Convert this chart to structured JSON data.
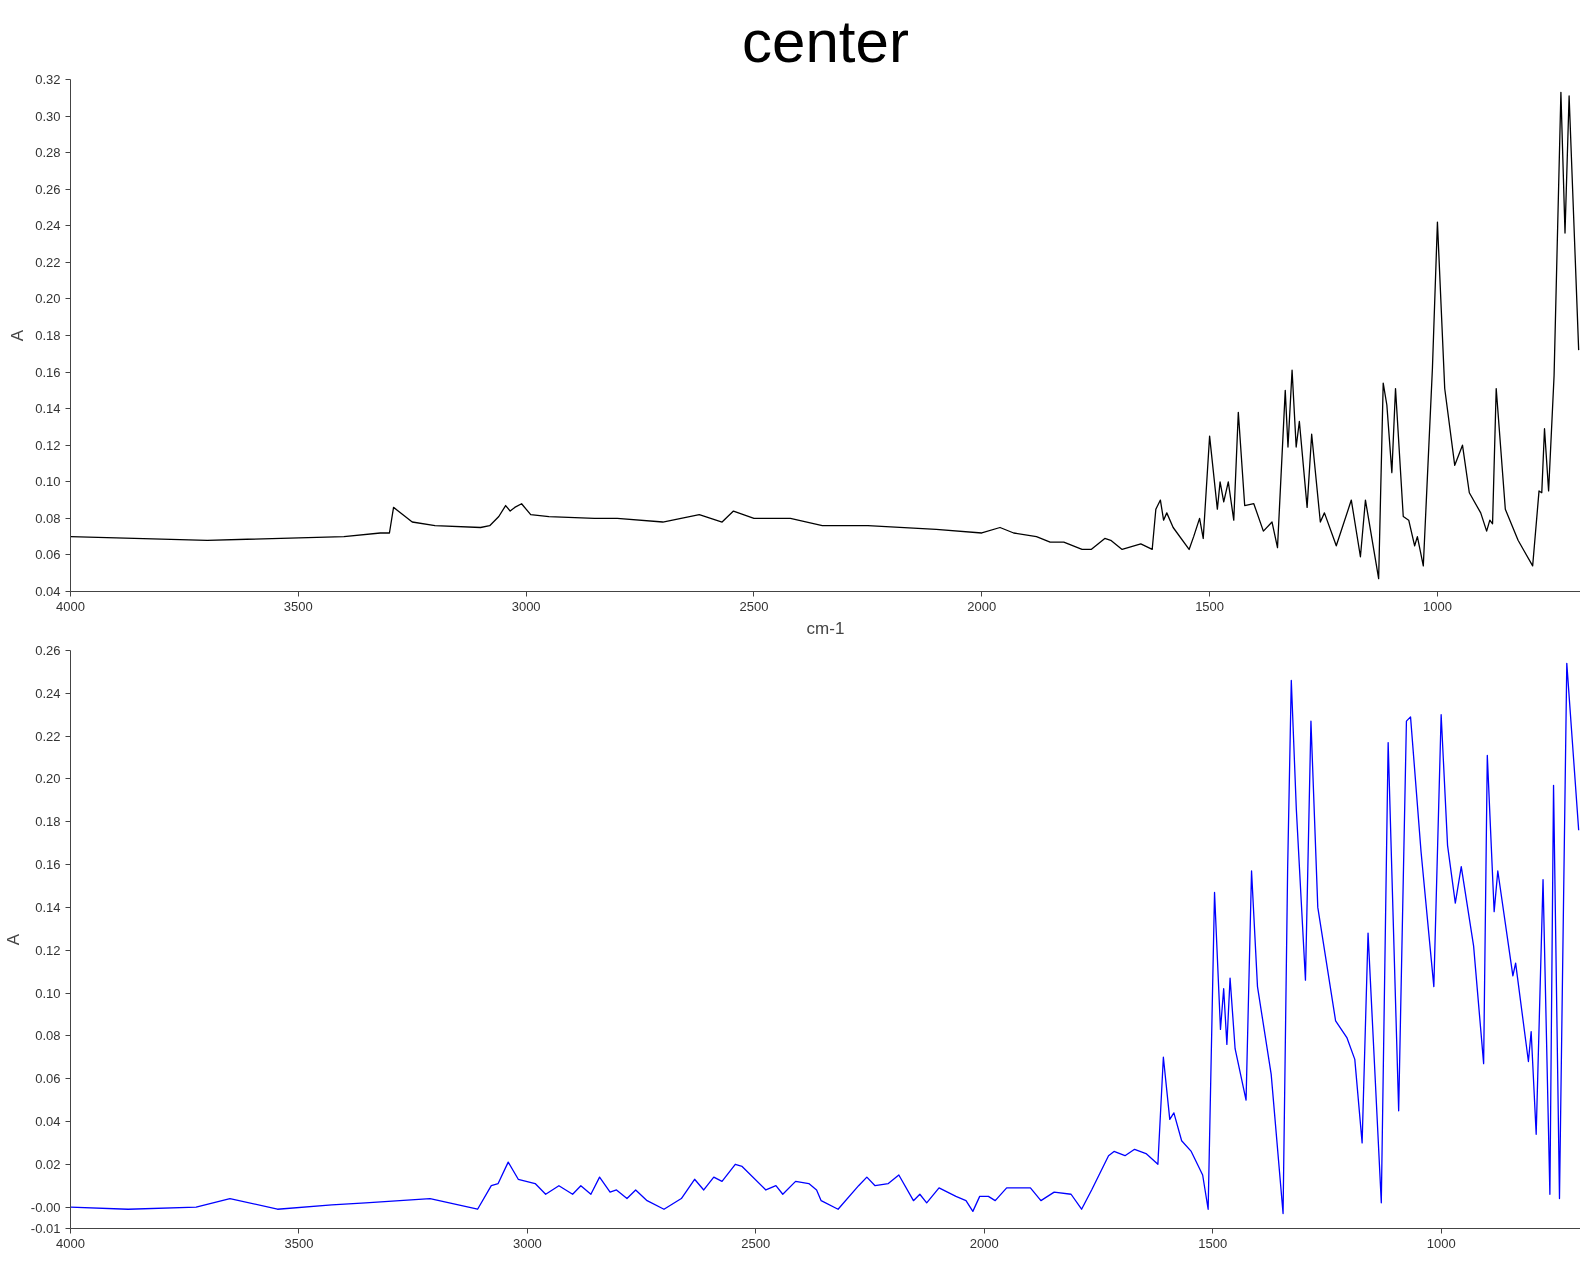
{
  "chart_data": [
    {
      "type": "line",
      "title": "center",
      "xlabel": "cm-1",
      "ylabel": "A",
      "grid": false,
      "xlim": [
        4000,
        686
      ],
      "ylim": [
        0.04,
        0.32
      ],
      "xticks": [
        4000,
        3500,
        3000,
        2500,
        2000,
        1500,
        1000
      ],
      "yticks": [
        {
          "value": 0.04,
          "label": "0.04"
        },
        {
          "value": 0.06,
          "label": "0.06"
        },
        {
          "value": 0.08,
          "label": "0.08"
        },
        {
          "value": 0.1,
          "label": "0.10"
        },
        {
          "value": 0.12,
          "label": "0.12"
        },
        {
          "value": 0.14,
          "label": "0.14"
        },
        {
          "value": 0.16,
          "label": "0.16"
        },
        {
          "value": 0.18,
          "label": "0.18"
        },
        {
          "value": 0.2,
          "label": "0.20"
        },
        {
          "value": 0.22,
          "label": "0.22"
        },
        {
          "value": 0.24,
          "label": "0.24"
        },
        {
          "value": 0.26,
          "label": "0.26"
        },
        {
          "value": 0.28,
          "label": "0.28"
        },
        {
          "value": 0.3,
          "label": "0.30"
        },
        {
          "value": 0.32,
          "label": "0.32"
        }
      ],
      "series": [
        {
          "color": "#000000",
          "x": [
            4000,
            3700,
            3400,
            3320,
            3300,
            3291,
            3250,
            3200,
            3100,
            3080,
            3060,
            3045,
            3035,
            3025,
            3010,
            2990,
            2950,
            2850,
            2800,
            2700,
            2620,
            2570,
            2545,
            2500,
            2420,
            2350,
            2250,
            2100,
            2000,
            1960,
            1930,
            1880,
            1850,
            1820,
            1780,
            1760,
            1730,
            1717,
            1692,
            1651,
            1626,
            1618,
            1608,
            1601,
            1594,
            1580,
            1545,
            1535,
            1522,
            1514,
            1500,
            1483,
            1477,
            1469,
            1459,
            1447,
            1437,
            1423,
            1403,
            1382,
            1363,
            1351,
            1334,
            1328,
            1319,
            1310,
            1303,
            1286,
            1276,
            1257,
            1248,
            1222,
            1189,
            1169,
            1158,
            1129,
            1119,
            1111,
            1100,
            1092,
            1075,
            1063,
            1050,
            1044,
            1031,
            1011,
            1000,
            984,
            962,
            945,
            930,
            905,
            892,
            885,
            879,
            871,
            851,
            823,
            791,
            777,
            771,
            765,
            756,
            744,
            729,
            720,
            711,
            690
          ],
          "values": [
            0.07,
            0.068,
            0.07,
            0.072,
            0.072,
            0.086,
            0.078,
            0.076,
            0.075,
            0.076,
            0.081,
            0.087,
            0.084,
            0.086,
            0.088,
            0.082,
            0.081,
            0.08,
            0.08,
            0.078,
            0.082,
            0.078,
            0.084,
            0.08,
            0.08,
            0.076,
            0.076,
            0.074,
            0.072,
            0.075,
            0.072,
            0.07,
            0.067,
            0.067,
            0.063,
            0.063,
            0.069,
            0.068,
            0.063,
            0.066,
            0.063,
            0.085,
            0.09,
            0.079,
            0.083,
            0.075,
            0.063,
            0.07,
            0.08,
            0.069,
            0.125,
            0.085,
            0.1,
            0.089,
            0.1,
            0.079,
            0.138,
            0.087,
            0.088,
            0.073,
            0.078,
            0.064,
            0.15,
            0.119,
            0.161,
            0.119,
            0.133,
            0.086,
            0.126,
            0.078,
            0.083,
            0.065,
            0.09,
            0.059,
            0.09,
            0.047,
            0.154,
            0.142,
            0.105,
            0.151,
            0.081,
            0.079,
            0.065,
            0.07,
            0.054,
            0.162,
            0.242,
            0.151,
            0.109,
            0.12,
            0.094,
            0.083,
            0.073,
            0.079,
            0.077,
            0.151,
            0.085,
            0.068,
            0.054,
            0.095,
            0.094,
            0.129,
            0.095,
            0.158,
            0.313,
            0.236,
            0.311,
            0.172
          ]
        }
      ]
    },
    {
      "type": "line",
      "ylabel": "A",
      "grid": false,
      "xlim": [
        4000,
        695
      ],
      "ylim": [
        -0.01,
        0.26
      ],
      "xticks": [
        4000,
        3500,
        3000,
        2500,
        2000,
        1500,
        1000
      ],
      "yticks": [
        {
          "value": -0.01,
          "label": "-0.01"
        },
        {
          "value": 0,
          "label": "-0.00"
        },
        {
          "value": 0.02,
          "label": "0.02"
        },
        {
          "value": 0.04,
          "label": "0.04"
        },
        {
          "value": 0.06,
          "label": "0.06"
        },
        {
          "value": 0.08,
          "label": "0.08"
        },
        {
          "value": 0.1,
          "label": "0.10"
        },
        {
          "value": 0.12,
          "label": "0.12"
        },
        {
          "value": 0.14,
          "label": "0.14"
        },
        {
          "value": 0.16,
          "label": "0.16"
        },
        {
          "value": 0.18,
          "label": "0.18"
        },
        {
          "value": 0.2,
          "label": "0.20"
        },
        {
          "value": 0.22,
          "label": "0.22"
        },
        {
          "value": 0.24,
          "label": "0.24"
        },
        {
          "value": 0.26,
          "label": "0.26"
        }
      ],
      "series": [
        {
          "color": "#0000ff",
          "x": [
            4000,
            3874,
            3725,
            3651,
            3547,
            3428,
            3354,
            3213,
            3109,
            3079,
            3064,
            3042,
            3020,
            2983,
            2960,
            2931,
            2901,
            2883,
            2861,
            2842,
            2819,
            2805,
            2782,
            2763,
            2738,
            2701,
            2663,
            2634,
            2614,
            2592,
            2574,
            2545,
            2530,
            2478,
            2456,
            2441,
            2413,
            2384,
            2367,
            2357,
            2320,
            2275,
            2257,
            2239,
            2210,
            2187,
            2155,
            2141,
            2126,
            2099,
            2062,
            2040,
            2025,
            2010,
            1991,
            1976,
            1951,
            1899,
            1876,
            1847,
            1810,
            1787,
            1765,
            1728,
            1716,
            1692,
            1671,
            1646,
            1620,
            1608,
            1594,
            1585,
            1568,
            1547,
            1522,
            1510,
            1496,
            1483,
            1476,
            1469,
            1462,
            1451,
            1427,
            1415,
            1402,
            1372,
            1346,
            1336,
            1328,
            1317,
            1297,
            1285,
            1270,
            1231,
            1206,
            1189,
            1173,
            1160,
            1131,
            1116,
            1093,
            1076,
            1067,
            1044,
            1016,
            1000,
            986,
            969,
            956,
            929,
            907,
            899,
            884,
            876,
            843,
            837,
            809,
            803,
            792,
            777,
            762,
            754,
            741,
            725,
            699
          ],
          "values": [
            0.0,
            -0.001,
            0.0,
            0.004,
            -0.001,
            0.001,
            0.002,
            0.004,
            -0.001,
            0.01,
            0.011,
            0.021,
            0.013,
            0.011,
            0.006,
            0.01,
            0.006,
            0.01,
            0.006,
            0.014,
            0.007,
            0.008,
            0.004,
            0.008,
            0.003,
            -0.001,
            0.004,
            0.013,
            0.008,
            0.014,
            0.012,
            0.02,
            0.019,
            0.008,
            0.01,
            0.006,
            0.012,
            0.011,
            0.008,
            0.003,
            -0.001,
            0.01,
            0.014,
            0.01,
            0.011,
            0.015,
            0.003,
            0.006,
            0.002,
            0.009,
            0.005,
            0.003,
            -0.002,
            0.005,
            0.005,
            0.003,
            0.009,
            0.009,
            0.003,
            0.007,
            0.006,
            -0.001,
            0.008,
            0.024,
            0.026,
            0.024,
            0.027,
            0.025,
            0.02,
            0.07,
            0.041,
            0.044,
            0.031,
            0.026,
            0.015,
            -0.001,
            0.147,
            0.083,
            0.102,
            0.076,
            0.107,
            0.074,
            0.05,
            0.157,
            0.103,
            0.062,
            -0.003,
            0.158,
            0.246,
            0.186,
            0.106,
            0.227,
            0.14,
            0.087,
            0.079,
            0.069,
            0.03,
            0.128,
            0.002,
            0.217,
            0.045,
            0.227,
            0.229,
            0.166,
            0.103,
            0.23,
            0.169,
            0.142,
            0.159,
            0.122,
            0.067,
            0.211,
            0.138,
            0.157,
            0.108,
            0.114,
            0.068,
            0.082,
            0.034,
            0.153,
            0.006,
            0.197,
            0.004,
            0.254,
            0.176
          ]
        }
      ]
    }
  ]
}
